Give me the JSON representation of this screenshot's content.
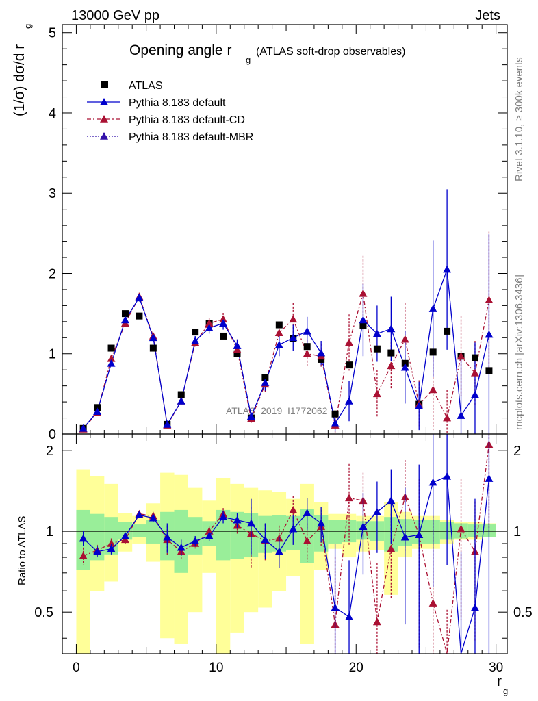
{
  "header": {
    "left": "13000 GeV pp",
    "right": "Jets"
  },
  "side": {
    "rivet": "Rivet 3.1.10, ≥ 300k events",
    "mcplots": "mcplots.cern.ch [arXiv:1306.3436]"
  },
  "chart_data": {
    "type": "scatter",
    "title_main": "Opening angle r",
    "title_sub": "g",
    "title_rest": "(ATLAS soft-drop observables)",
    "ylabel": "(1/σ) dσ/d r",
    "ylabel_sub": "g",
    "xlabel": "r",
    "xlabel_sub": "g",
    "ratio_ylabel": "Ratio to ATLAS",
    "watermark": "ATLAS_2019_I1772062",
    "xlim": [
      -1,
      30.8
    ],
    "ylim": [
      0,
      5.1
    ],
    "ratio_ylim": [
      0.35,
      2.3
    ],
    "x_ticks": [
      0,
      10,
      20,
      30
    ],
    "x_tick_labels": [
      "0",
      "10",
      "20",
      "30"
    ],
    "y_ticks": [
      0,
      1,
      2,
      3,
      4,
      5
    ],
    "y_tick_labels": [
      "0",
      "1",
      "2",
      "3",
      "4",
      "5"
    ],
    "ratio_ticks": [
      0.5,
      1,
      2
    ],
    "ratio_tick_labels": [
      "0.5",
      "1",
      "2"
    ],
    "x": [
      0.5,
      1.5,
      2.5,
      3.5,
      4.5,
      5.5,
      6.5,
      7.5,
      8.5,
      9.5,
      10.5,
      11.5,
      12.5,
      13.5,
      14.5,
      15.5,
      16.5,
      17.5,
      18.5,
      19.5,
      20.5,
      21.5,
      22.5,
      23.5,
      24.5,
      25.5,
      26.5,
      27.5,
      28.5,
      29.5
    ],
    "legend": [
      "ATLAS",
      "Pythia 8.183 default",
      "Pythia 8.183 default-CD",
      "Pythia 8.183 default-MBR"
    ],
    "series": [
      {
        "name": "ATLAS",
        "color": "#000000",
        "values": [
          0.07,
          0.33,
          1.07,
          1.5,
          1.47,
          1.07,
          0.12,
          0.49,
          1.27,
          1.38,
          1.22,
          1.0,
          0.2,
          0.7,
          1.36,
          1.19,
          1.09,
          0.93,
          0.25,
          0.86,
          1.35,
          1.06,
          1.01,
          0.88,
          0.37,
          1.02,
          1.28,
          0.97,
          0.95,
          0.79
        ]
      },
      {
        "name": "Pythia 8.183 default",
        "color": "#0000cc",
        "values": [
          0.07,
          0.28,
          0.88,
          1.42,
          1.7,
          1.2,
          0.12,
          0.41,
          1.16,
          1.32,
          1.38,
          1.1,
          0.22,
          0.64,
          1.11,
          1.2,
          1.28,
          1.01,
          0.13,
          0.41,
          1.42,
          1.25,
          1.31,
          0.83,
          0.35,
          1.56,
          2.05,
          0.23,
          0.49,
          1.24
        ],
        "err": [
          0.01,
          0.02,
          0.03,
          0.04,
          0.05,
          0.04,
          0.02,
          0.04,
          0.06,
          0.07,
          0.08,
          0.08,
          0.05,
          0.1,
          0.14,
          0.16,
          0.18,
          0.15,
          0.1,
          0.25,
          0.45,
          0.35,
          0.4,
          0.45,
          0.3,
          0.85,
          1.0,
          0.7,
          0.65,
          1.25
        ]
      },
      {
        "name": "Pythia 8.183 default-CD",
        "color": "#aa1133",
        "values": [
          0.06,
          0.27,
          0.94,
          1.38,
          1.71,
          1.22,
          0.11,
          0.41,
          1.14,
          1.38,
          1.43,
          1.05,
          0.19,
          0.62,
          1.26,
          1.43,
          1.0,
          0.97,
          0.11,
          1.14,
          1.75,
          0.5,
          0.85,
          1.18,
          0.37,
          0.55,
          0.2,
          0.97,
          0.76,
          1.67
        ],
        "err": [
          0.01,
          0.02,
          0.03,
          0.04,
          0.05,
          0.04,
          0.02,
          0.04,
          0.06,
          0.07,
          0.08,
          0.08,
          0.05,
          0.1,
          0.14,
          0.2,
          0.17,
          0.15,
          0.1,
          0.35,
          0.47,
          0.3,
          0.3,
          0.45,
          0.3,
          0.5,
          0.35,
          0.5,
          0.4,
          0.85
        ]
      },
      {
        "name": "Pythia 8.183 default-MBR",
        "color": "#3311aa",
        "values": []
      }
    ],
    "ratio_series": [
      {
        "name": "Pythia 8.183 default",
        "color": "#0000cc",
        "values": [
          0.94,
          0.84,
          0.86,
          0.96,
          1.15,
          1.12,
          0.95,
          0.87,
          0.92,
          0.96,
          1.13,
          1.1,
          1.07,
          0.93,
          0.84,
          1.02,
          1.17,
          1.07,
          0.52,
          0.48,
          1.04,
          1.18,
          1.3,
          0.95,
          0.97,
          1.52,
          1.6,
          0.24,
          0.52,
          1.57
        ],
        "err": [
          0.06,
          0.04,
          0.04,
          0.03,
          0.03,
          0.04,
          0.12,
          0.06,
          0.04,
          0.04,
          0.06,
          0.07,
          0.25,
          0.14,
          0.11,
          0.13,
          0.16,
          0.16,
          0.38,
          0.3,
          0.35,
          0.35,
          0.4,
          0.5,
          0.8,
          0.9,
          0.85,
          0.6,
          0.8,
          1.5
        ]
      },
      {
        "name": "Pythia 8.183 default-CD",
        "color": "#aa1133",
        "values": [
          0.81,
          0.85,
          0.9,
          0.93,
          1.16,
          1.14,
          0.93,
          0.84,
          0.9,
          1.0,
          1.16,
          1.05,
          0.98,
          0.92,
          0.94,
          1.2,
          0.92,
          1.04,
          0.45,
          1.33,
          1.3,
          0.46,
          0.86,
          1.34,
          0.97,
          0.54,
          0.16,
          1.02,
          0.84,
          2.1
        ],
        "err": [
          0.06,
          0.04,
          0.04,
          0.03,
          0.03,
          0.04,
          0.12,
          0.06,
          0.04,
          0.04,
          0.06,
          0.07,
          0.25,
          0.14,
          0.11,
          0.15,
          0.15,
          0.16,
          0.35,
          0.45,
          0.35,
          0.3,
          0.3,
          0.5,
          0.6,
          0.6,
          0.35,
          0.55,
          0.45,
          1.1
        ]
      }
    ],
    "band_green": [
      [
        0.72,
        1.2
      ],
      [
        0.78,
        1.16
      ],
      [
        0.82,
        1.13
      ],
      [
        0.93,
        1.08
      ],
      [
        0.95,
        1.06
      ],
      [
        0.9,
        1.1
      ],
      [
        0.78,
        1.18
      ],
      [
        0.7,
        1.2
      ],
      [
        0.82,
        1.13
      ],
      [
        0.88,
        1.09
      ],
      [
        0.78,
        1.2
      ],
      [
        0.79,
        1.18
      ],
      [
        0.8,
        1.17
      ],
      [
        0.83,
        1.14
      ],
      [
        0.84,
        1.15
      ],
      [
        0.85,
        1.14
      ],
      [
        0.76,
        1.21
      ],
      [
        0.84,
        1.15
      ],
      [
        0.9,
        1.1
      ],
      [
        0.91,
        1.1
      ],
      [
        0.93,
        1.09
      ],
      [
        0.92,
        1.09
      ],
      [
        0.84,
        1.13
      ],
      [
        0.88,
        1.11
      ],
      [
        0.9,
        1.1
      ],
      [
        0.9,
        1.1
      ],
      [
        0.93,
        1.08
      ],
      [
        0.94,
        1.07
      ],
      [
        0.95,
        1.06
      ],
      [
        0.95,
        1.06
      ]
    ],
    "band_yellow": [
      [
        0.3,
        1.7
      ],
      [
        0.6,
        1.6
      ],
      [
        0.65,
        1.5
      ],
      [
        0.84,
        1.17
      ],
      [
        0.9,
        1.14
      ],
      [
        0.77,
        1.27
      ],
      [
        0.4,
        1.65
      ],
      [
        0.38,
        1.62
      ],
      [
        0.5,
        1.45
      ],
      [
        0.7,
        1.3
      ],
      [
        0.35,
        1.58
      ],
      [
        0.42,
        1.5
      ],
      [
        0.5,
        1.45
      ],
      [
        0.52,
        1.42
      ],
      [
        0.6,
        1.4
      ],
      [
        0.68,
        1.32
      ],
      [
        0.38,
        1.5
      ],
      [
        0.72,
        1.28
      ],
      [
        0.86,
        1.16
      ],
      [
        0.8,
        1.16
      ],
      [
        0.84,
        1.14
      ],
      [
        0.85,
        1.14
      ],
      [
        0.58,
        1.28
      ],
      [
        0.8,
        1.18
      ],
      [
        0.86,
        1.14
      ],
      [
        0.86,
        1.14
      ],
      [
        0.9,
        1.1
      ],
      [
        0.93,
        1.08
      ],
      [
        0.93,
        1.08
      ],
      [
        0.95,
        1.07
      ]
    ]
  }
}
